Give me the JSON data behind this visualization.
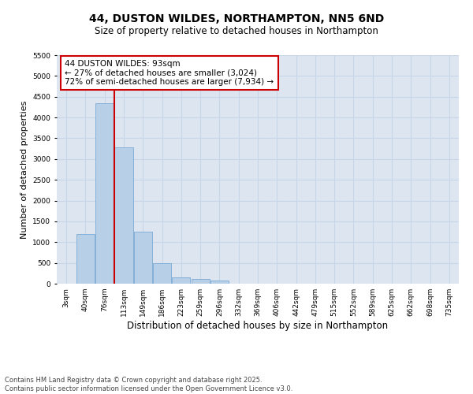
{
  "title": "44, DUSTON WILDES, NORTHAMPTON, NN5 6ND",
  "subtitle": "Size of property relative to detached houses in Northampton",
  "xlabel": "Distribution of detached houses by size in Northampton",
  "ylabel": "Number of detached properties",
  "categories": [
    "3sqm",
    "40sqm",
    "76sqm",
    "113sqm",
    "149sqm",
    "186sqm",
    "223sqm",
    "259sqm",
    "296sqm",
    "332sqm",
    "369sqm",
    "406sqm",
    "442sqm",
    "479sqm",
    "515sqm",
    "552sqm",
    "589sqm",
    "625sqm",
    "662sqm",
    "698sqm",
    "735sqm"
  ],
  "values": [
    0,
    1200,
    4350,
    3280,
    1250,
    490,
    160,
    120,
    80,
    0,
    0,
    0,
    0,
    0,
    0,
    0,
    0,
    0,
    0,
    0,
    0
  ],
  "bar_color": "#b8cfe8",
  "bar_edge_color": "#7aaad4",
  "grid_color": "#c8d4e8",
  "background_color": "#dde6f0",
  "annotation_text": "44 DUSTON WILDES: 93sqm\n← 27% of detached houses are smaller (3,024)\n72% of semi-detached houses are larger (7,934) →",
  "annotation_box_facecolor": "#ffffff",
  "annotation_box_edgecolor": "#cc0000",
  "vline_color": "#cc0000",
  "vline_x_index": 2,
  "ylim": [
    0,
    5500
  ],
  "yticks": [
    0,
    500,
    1000,
    1500,
    2000,
    2500,
    3000,
    3500,
    4000,
    4500,
    5000,
    5500
  ],
  "footer_line1": "Contains HM Land Registry data © Crown copyright and database right 2025.",
  "footer_line2": "Contains public sector information licensed under the Open Government Licence v3.0.",
  "title_fontsize": 10,
  "subtitle_fontsize": 8.5,
  "xlabel_fontsize": 8.5,
  "ylabel_fontsize": 8,
  "tick_fontsize": 6.5,
  "annotation_fontsize": 7.5,
  "footer_fontsize": 6
}
